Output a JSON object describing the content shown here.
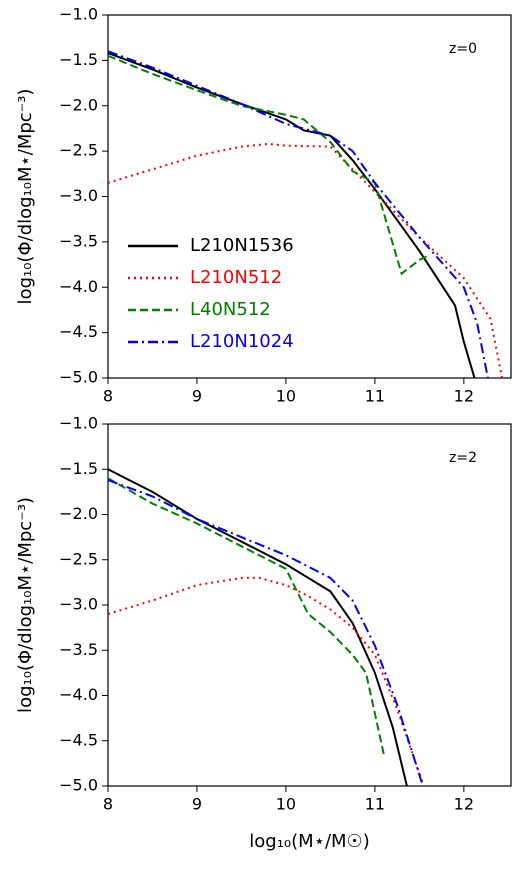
{
  "chart_data": [
    {
      "type": "line",
      "annotation": "z=0",
      "ylabel": "log₁₀(Φ/dlog₁₀M⋆/Mpc⁻³)",
      "legend": "lower left",
      "xlim": [
        8,
        12.53
      ],
      "ylim": [
        -5.0,
        -1.0
      ],
      "xticks": [
        8,
        9,
        10,
        11,
        12
      ],
      "yticks": [
        {
          "value": -5.0,
          "label": "−5.0"
        },
        {
          "value": -4.5,
          "label": "−4.5"
        },
        {
          "value": -4.0,
          "label": "−4.0"
        },
        {
          "value": -3.5,
          "label": "−3.5"
        },
        {
          "value": -3.0,
          "label": "−3.0"
        },
        {
          "value": -2.5,
          "label": "−2.5"
        },
        {
          "value": -2.0,
          "label": "−2.0"
        },
        {
          "value": -1.5,
          "label": "−1.5"
        },
        {
          "value": -1.0,
          "label": "−1.0"
        }
      ],
      "series": [
        {
          "name": "L210N1536",
          "color": "#000000",
          "style": "solid",
          "x": [
            8,
            8.5,
            9,
            9.5,
            10,
            10.2,
            10.5,
            10.75,
            11,
            11.5,
            11.9,
            12.0,
            12.12
          ],
          "values": [
            -1.42,
            -1.6,
            -1.8,
            -1.98,
            -2.15,
            -2.27,
            -2.33,
            -2.6,
            -2.92,
            -3.6,
            -4.2,
            -4.6,
            -5.0
          ]
        },
        {
          "name": "L210N512",
          "color": "#ff0000",
          "style": "dotted",
          "x": [
            8,
            8.5,
            9,
            9.5,
            9.8,
            10,
            10.5,
            10.75,
            11,
            11.5,
            12,
            12.3,
            12.43
          ],
          "values": [
            -2.85,
            -2.7,
            -2.55,
            -2.45,
            -2.42,
            -2.44,
            -2.45,
            -2.7,
            -2.95,
            -3.45,
            -3.9,
            -4.35,
            -5.0
          ]
        },
        {
          "name": "L40N512",
          "color": "#008000",
          "style": "dashed",
          "x": [
            8,
            8.5,
            9,
            9.5,
            10,
            10.2,
            10.5,
            10.75,
            11,
            11.3,
            11.5,
            11.6
          ],
          "values": [
            -1.45,
            -1.65,
            -1.83,
            -2.0,
            -2.1,
            -2.15,
            -2.4,
            -2.72,
            -2.85,
            -3.85,
            -3.7,
            -3.65
          ]
        },
        {
          "name": "L210N1024",
          "color": "#0000ff",
          "style": "dashdot",
          "x": [
            8,
            8.5,
            9,
            9.5,
            10,
            10.5,
            10.75,
            11,
            11.5,
            12,
            12.15,
            12.27
          ],
          "values": [
            -1.4,
            -1.58,
            -1.78,
            -1.98,
            -2.2,
            -2.33,
            -2.5,
            -2.85,
            -3.45,
            -4.0,
            -4.4,
            -5.0
          ]
        }
      ]
    },
    {
      "type": "line",
      "annotation": "z=2",
      "ylabel": "log₁₀(Φ/dlog₁₀M⋆/Mpc⁻³)",
      "xlabel": "log₁₀(M⋆/M☉)",
      "xlim": [
        8,
        12.53
      ],
      "ylim": [
        -5.0,
        -1.0
      ],
      "xticks": [
        8,
        9,
        10,
        11,
        12
      ],
      "yticks": [
        {
          "value": -5.0,
          "label": "−5.0"
        },
        {
          "value": -4.5,
          "label": "−4.5"
        },
        {
          "value": -4.0,
          "label": "−4.0"
        },
        {
          "value": -3.5,
          "label": "−3.5"
        },
        {
          "value": -3.0,
          "label": "−3.0"
        },
        {
          "value": -2.5,
          "label": "−2.5"
        },
        {
          "value": -2.0,
          "label": "−2.0"
        },
        {
          "value": -1.5,
          "label": "−1.5"
        },
        {
          "value": -1.0,
          "label": "−1.0"
        }
      ],
      "series": [
        {
          "name": "L210N1536",
          "color": "#000000",
          "style": "solid",
          "x": [
            8,
            8.5,
            9,
            9.5,
            10,
            10.5,
            10.75,
            11,
            11.2,
            11.36
          ],
          "values": [
            -1.5,
            -1.75,
            -2.05,
            -2.3,
            -2.55,
            -2.85,
            -3.2,
            -3.75,
            -4.35,
            -5.0
          ]
        },
        {
          "name": "L210N512",
          "color": "#ff0000",
          "style": "dotted",
          "x": [
            8,
            8.5,
            9,
            9.5,
            9.7,
            10,
            10.25,
            10.5,
            10.75,
            11,
            11.25,
            11.55
          ],
          "values": [
            -3.1,
            -2.95,
            -2.78,
            -2.7,
            -2.7,
            -2.78,
            -2.9,
            -3.05,
            -3.25,
            -3.55,
            -4.15,
            -5.0
          ]
        },
        {
          "name": "L40N512",
          "color": "#008000",
          "style": "dashed",
          "x": [
            8,
            8.5,
            9,
            9.5,
            10,
            10.25,
            10.5,
            10.75,
            10.9,
            11.1
          ],
          "values": [
            -1.6,
            -1.88,
            -2.1,
            -2.35,
            -2.6,
            -3.1,
            -3.3,
            -3.55,
            -3.75,
            -4.65
          ]
        },
        {
          "name": "L210N1024",
          "color": "#0000ff",
          "style": "dashdot",
          "x": [
            8,
            8.5,
            9,
            9.5,
            10,
            10.5,
            10.75,
            11,
            11.25,
            11.54
          ],
          "values": [
            -1.62,
            -1.8,
            -2.05,
            -2.25,
            -2.45,
            -2.7,
            -2.95,
            -3.45,
            -4.1,
            -5.0
          ]
        }
      ]
    }
  ]
}
